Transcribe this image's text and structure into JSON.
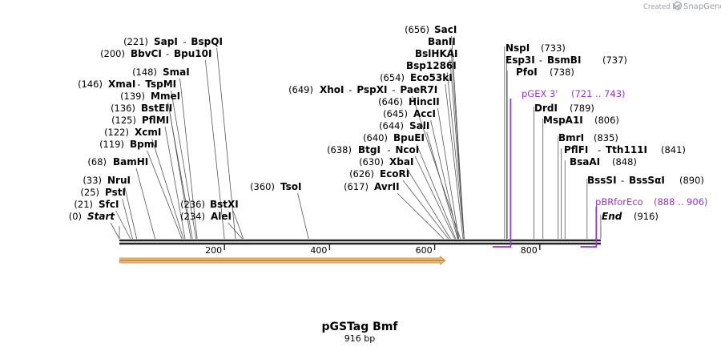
{
  "credit": {
    "created_by": "Created by",
    "brand": "SnapGene"
  },
  "plasmid": {
    "name": "pGSTag Bmf",
    "length_label": "916 bp",
    "length": 916
  },
  "axis": {
    "ticks": [
      200,
      400,
      600,
      800
    ]
  },
  "feature": {
    "start": 1,
    "end": 620,
    "color": "#f5c27a",
    "direction": "forward"
  },
  "sites": [
    {
      "pos": 0,
      "pos_label": "(0)",
      "name": "Start",
      "partner": "",
      "side": "left",
      "italic": true
    },
    {
      "pos": 21,
      "pos_label": "(21)",
      "name": "SfcI",
      "partner": "",
      "side": "left"
    },
    {
      "pos": 25,
      "pos_label": "(25)",
      "name": "PstI",
      "partner": "",
      "side": "left"
    },
    {
      "pos": 33,
      "pos_label": "(33)",
      "name": "NruI",
      "partner": "",
      "side": "left"
    },
    {
      "pos": 68,
      "pos_label": "(68)",
      "name": "BamHI",
      "partner": "",
      "side": "left"
    },
    {
      "pos": 119,
      "pos_label": "(119)",
      "name": "BpmI",
      "partner": "",
      "side": "left"
    },
    {
      "pos": 122,
      "pos_label": "(122)",
      "name": "XcmI",
      "partner": "",
      "side": "left"
    },
    {
      "pos": 125,
      "pos_label": "(125)",
      "name": "PflMI",
      "partner": "",
      "side": "left"
    },
    {
      "pos": 136,
      "pos_label": "(136)",
      "name": "BstEII",
      "partner": "",
      "side": "left"
    },
    {
      "pos": 139,
      "pos_label": "(139)",
      "name": "MmeI",
      "partner": "",
      "side": "left"
    },
    {
      "pos": 146,
      "pos_label": "(146)",
      "name": "XmaI",
      "partner": "TspMI",
      "side": "left"
    },
    {
      "pos": 148,
      "pos_label": "(148)",
      "name": "SmaI",
      "partner": "",
      "side": "left"
    },
    {
      "pos": 200,
      "pos_label": "(200)",
      "name": "BbvCI",
      "partner": "Bpu10I",
      "side": "left"
    },
    {
      "pos": 221,
      "pos_label": "(221)",
      "name": "SapI",
      "partner": "BspQI",
      "side": "left"
    },
    {
      "pos": 234,
      "pos_label": "(234)",
      "name": "AleI",
      "partner": "",
      "side": "left"
    },
    {
      "pos": 236,
      "pos_label": "(236)",
      "name": "BstXI",
      "partner": "",
      "side": "left"
    },
    {
      "pos": 360,
      "pos_label": "(360)",
      "name": "TsoI",
      "partner": "",
      "side": "left"
    },
    {
      "pos": 617,
      "pos_label": "(617)",
      "name": "AvrII",
      "partner": "",
      "side": "left"
    },
    {
      "pos": 626,
      "pos_label": "(626)",
      "name": "EcoRI",
      "partner": "",
      "side": "left"
    },
    {
      "pos": 630,
      "pos_label": "(630)",
      "name": "XbaI",
      "partner": "",
      "side": "left"
    },
    {
      "pos": 638,
      "pos_label": "(638)",
      "name": "BtgI",
      "partner": "NcoI",
      "side": "left"
    },
    {
      "pos": 640,
      "pos_label": "(640)",
      "name": "BpuEI",
      "partner": "",
      "side": "left"
    },
    {
      "pos": 644,
      "pos_label": "(644)",
      "name": "SalI",
      "partner": "",
      "side": "left"
    },
    {
      "pos": 645,
      "pos_label": "(645)",
      "name": "AccI",
      "partner": "",
      "side": "left"
    },
    {
      "pos": 646,
      "pos_label": "(646)",
      "name": "HincII",
      "partner": "",
      "side": "left"
    },
    {
      "pos": 649,
      "pos_label": "(649)",
      "name": "XhoI",
      "partner": "PspXI",
      "partner2": "PaeR7I",
      "side": "left"
    },
    {
      "pos": 654,
      "pos_label": "(654)",
      "name": "Eco53kI",
      "partner": "",
      "side": "left"
    },
    {
      "pos": 656,
      "pos_label": "",
      "name": "Bsp1286I",
      "partner": "",
      "side": "left"
    },
    {
      "pos": 656,
      "pos_label": "",
      "name": "BslHKAI",
      "partner": "",
      "side": "left"
    },
    {
      "pos": 656,
      "pos_label": "",
      "name": "BanII",
      "partner": "",
      "side": "left"
    },
    {
      "pos": 656,
      "pos_label": "(656)",
      "name": "SacI",
      "partner": "",
      "side": "left"
    },
    {
      "pos": 733,
      "pos_label": "(733)",
      "name": "NspI",
      "partner": "",
      "side": "right"
    },
    {
      "pos": 737,
      "pos_label": "(737)",
      "name": "Esp3I",
      "partner": "BsmBI",
      "side": "right"
    },
    {
      "pos": 738,
      "pos_label": "(738)",
      "name": "PfoI",
      "partner": "",
      "side": "right"
    },
    {
      "pos": 789,
      "pos_label": "(789)",
      "name": "DrdI",
      "partner": "",
      "side": "right"
    },
    {
      "pos": 806,
      "pos_label": "(806)",
      "name": "MspA1I",
      "partner": "",
      "side": "right"
    },
    {
      "pos": 835,
      "pos_label": "(835)",
      "name": "BmrI",
      "partner": "",
      "side": "right"
    },
    {
      "pos": 841,
      "pos_label": "(841)",
      "name": "PflFI",
      "partner": "Tth111I",
      "side": "right"
    },
    {
      "pos": 848,
      "pos_label": "(848)",
      "name": "BsaAI",
      "partner": "",
      "side": "right"
    },
    {
      "pos": 890,
      "pos_label": "(890)",
      "name": "BssSI",
      "partner": "BssSαI",
      "side": "right"
    },
    {
      "pos": 916,
      "pos_label": "(916)",
      "name": "End",
      "partner": "",
      "side": "right",
      "italic": true
    }
  ],
  "primers": [
    {
      "name": "pGEX 3'",
      "range_label": "(721 .. 743)",
      "start": 721,
      "end": 743,
      "color": "#9933cc",
      "dir": "reverse"
    },
    {
      "name": "pBRforEco",
      "range_label": "(888 .. 906)",
      "start": 888,
      "end": 906,
      "color": "#9933cc",
      "dir": "reverse"
    }
  ]
}
